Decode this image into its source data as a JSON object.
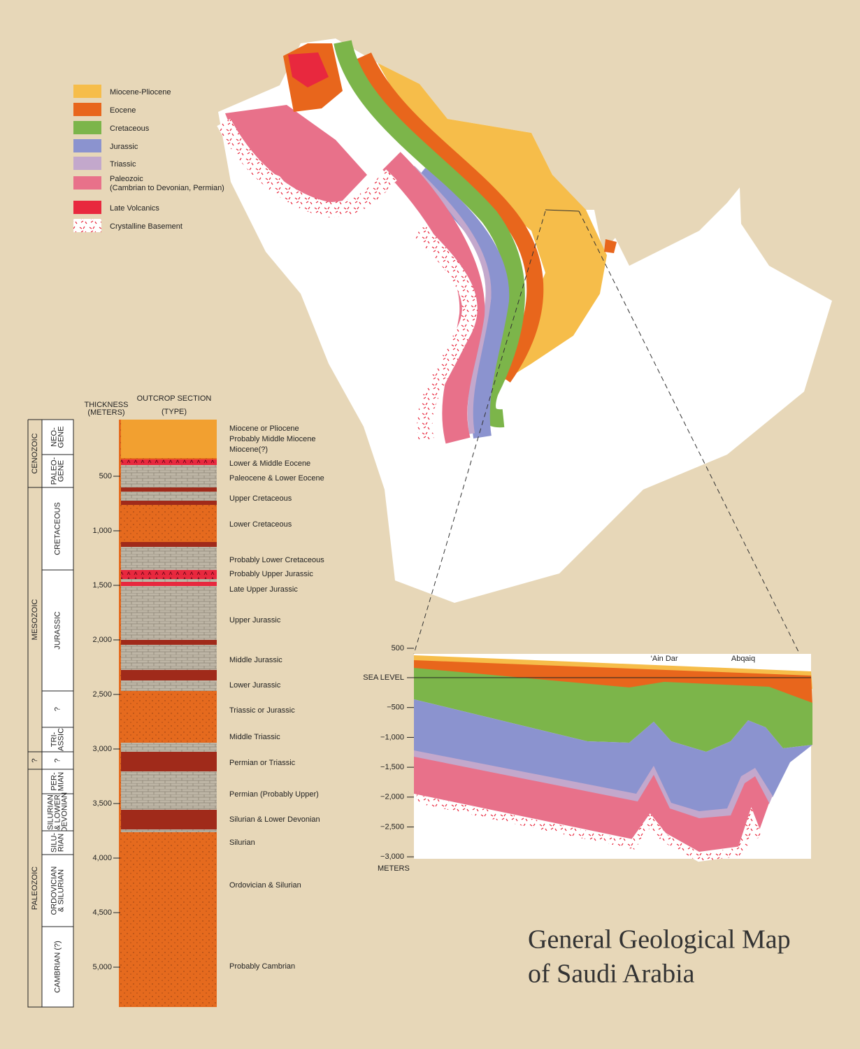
{
  "title": [
    "General Geological Map",
    "of Saudi Arabia"
  ],
  "legend": [
    {
      "label": "Miocene-Pliocene",
      "color": "#f6bd4a"
    },
    {
      "label": "Eocene",
      "color": "#e8661c"
    },
    {
      "label": "Cretaceous",
      "color": "#7cb54a"
    },
    {
      "label": "Jurassic",
      "color": "#8b93cf"
    },
    {
      "label": "Triassic",
      "color": "#c3a8cc"
    },
    {
      "label": [
        "Paleozoic",
        "(Cambrian to Devonian, Permian)"
      ],
      "color": "#e8718a"
    },
    {
      "label": "Late Volcanics",
      "color": "#e8283e"
    },
    {
      "label": "Crystalline Basement",
      "color": "#ffffff"
    }
  ],
  "column": {
    "thickness_header": [
      "THICKNESS",
      "(METERS)"
    ],
    "section_header": [
      "OUTCROP SECTION",
      "(TYPE)"
    ],
    "ticks": [
      "500",
      "1,000",
      "1,500",
      "2,000",
      "2,500",
      "3,000",
      "3,500",
      "4,000",
      "4,500",
      "5,000"
    ],
    "eras": [
      "CENOZOIC",
      "MESOZOIC",
      "?",
      "PALEOZOIC"
    ],
    "periods": [
      [
        "NEO-",
        "GENE"
      ],
      [
        "PALEO-",
        "GENE"
      ],
      [
        "CRETACEOUS"
      ],
      [
        "JURASSIC"
      ],
      [
        "?"
      ],
      [
        "TRI-",
        "ASSIC"
      ],
      [
        "?"
      ],
      [
        "PER-",
        "MIAN"
      ],
      [
        "SILURIAN",
        "& LOWER",
        "DEVONIAN"
      ],
      [
        "SILU-",
        "RIAN"
      ],
      [
        "ORDOVICIAN",
        "& SILURIAN"
      ],
      [
        "CAMBRIAN (?)"
      ]
    ],
    "units": [
      "Miocene or Pliocene",
      "Probably Middle Miocene",
      "Miocene(?)",
      "Lower & Middle Eocene",
      "Paleocene & Lower Eocene",
      "Upper Cretaceous",
      "Lower Cretaceous",
      "Probably Lower Cretaceous",
      "Probably Upper Jurassic",
      "Late Upper Jurassic",
      "Upper Jurassic",
      "Middle Jurassic",
      "Lower Jurassic",
      "Triassic or Jurassic",
      "Middle Triassic",
      "Permian or Triassic",
      "Permian (Probably Upper)",
      "Silurian & Lower Devonian",
      "Silurian",
      "Ordovician & Silurian",
      "Probably Cambrian"
    ]
  },
  "section": {
    "ticks": [
      "500",
      "SEA LEVEL",
      "−500",
      "−1,000",
      "−1,500",
      "−2,000",
      "−2,500",
      "−3,000"
    ],
    "unit": "METERS",
    "places": [
      "‘Ain Dar",
      "Abqaiq"
    ]
  }
}
